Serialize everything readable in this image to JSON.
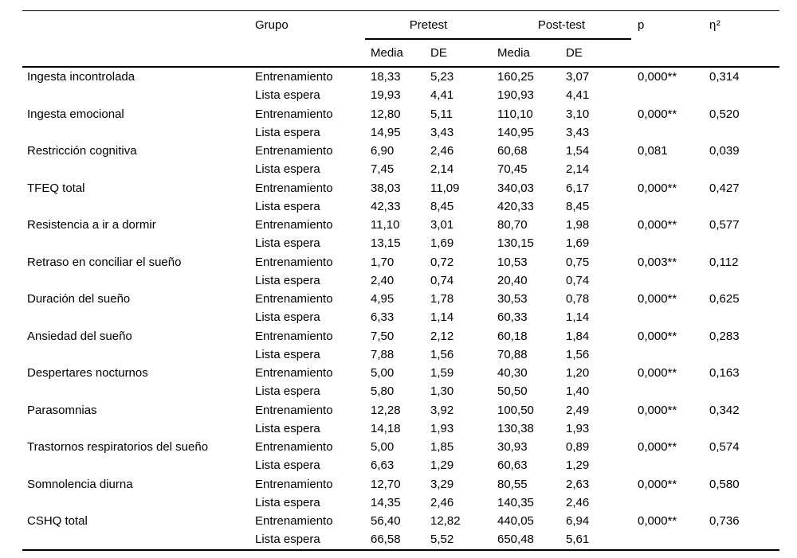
{
  "table": {
    "headers": {
      "grupo": "Grupo",
      "pretest": "Pretest",
      "posttest": "Post-test",
      "media": "Media",
      "de": "DE",
      "p": "p",
      "eta_label": "η²"
    },
    "rows": [
      {
        "variable": "Ingesta incontrolada",
        "groups": [
          {
            "grupo": "Entrenamiento",
            "pre_media": "18,33",
            "pre_de": "5,23",
            "post_media": "160,25",
            "post_de": "3,07",
            "p": "0,000**",
            "eta": "0,314"
          },
          {
            "grupo": "Lista espera",
            "pre_media": "19,93",
            "pre_de": "4,41",
            "post_media": "190,93",
            "post_de": "4,41",
            "p": "",
            "eta": ""
          }
        ]
      },
      {
        "variable": "Ingesta emocional",
        "groups": [
          {
            "grupo": "Entrenamiento",
            "pre_media": "12,80",
            "pre_de": "5,11",
            "post_media": "110,10",
            "post_de": "3,10",
            "p": "0,000**",
            "eta": "0,520"
          },
          {
            "grupo": "Lista espera",
            "pre_media": "14,95",
            "pre_de": "3,43",
            "post_media": "140,95",
            "post_de": "3,43",
            "p": "",
            "eta": ""
          }
        ]
      },
      {
        "variable": "Restricción cognitiva",
        "groups": [
          {
            "grupo": "Entrenamiento",
            "pre_media": "6,90",
            "pre_de": "2,46",
            "post_media": "60,68",
            "post_de": "1,54",
            "p": "0,081",
            "eta": "0,039"
          },
          {
            "grupo": "Lista espera",
            "pre_media": "7,45",
            "pre_de": "2,14",
            "post_media": "70,45",
            "post_de": "2,14",
            "p": "",
            "eta": ""
          }
        ]
      },
      {
        "variable": "TFEQ total",
        "groups": [
          {
            "grupo": "Entrenamiento",
            "pre_media": "38,03",
            "pre_de": "11,09",
            "post_media": "340,03",
            "post_de": "6,17",
            "p": "0,000**",
            "eta": "0,427"
          },
          {
            "grupo": "Lista espera",
            "pre_media": "42,33",
            "pre_de": "8,45",
            "post_media": "420,33",
            "post_de": "8,45",
            "p": "",
            "eta": ""
          }
        ]
      },
      {
        "variable": "Resistencia a ir a dormir",
        "groups": [
          {
            "grupo": "Entrenamiento",
            "pre_media": "11,10",
            "pre_de": "3,01",
            "post_media": "80,70",
            "post_de": "1,98",
            "p": "0,000**",
            "eta": "0,577"
          },
          {
            "grupo": "Lista espera",
            "pre_media": "13,15",
            "pre_de": "1,69",
            "post_media": "130,15",
            "post_de": "1,69",
            "p": "",
            "eta": ""
          }
        ]
      },
      {
        "variable": "Retraso en conciliar el sueño",
        "groups": [
          {
            "grupo": "Entrenamiento",
            "pre_media": "1,70",
            "pre_de": "0,72",
            "post_media": "10,53",
            "post_de": "0,75",
            "p": "0,003**",
            "eta": "0,112"
          },
          {
            "grupo": "Lista espera",
            "pre_media": "2,40",
            "pre_de": "0,74",
            "post_media": "20,40",
            "post_de": "0,74",
            "p": "",
            "eta": ""
          }
        ]
      },
      {
        "variable": "Duración del sueño",
        "groups": [
          {
            "grupo": "Entrenamiento",
            "pre_media": "4,95",
            "pre_de": "1,78",
            "post_media": "30,53",
            "post_de": "0,78",
            "p": "0,000**",
            "eta": "0,625"
          },
          {
            "grupo": "Lista espera",
            "pre_media": "6,33",
            "pre_de": "1,14",
            "post_media": "60,33",
            "post_de": "1,14",
            "p": "",
            "eta": ""
          }
        ]
      },
      {
        "variable": "Ansiedad del sueño",
        "groups": [
          {
            "grupo": "Entrenamiento",
            "pre_media": "7,50",
            "pre_de": "2,12",
            "post_media": "60,18",
            "post_de": "1,84",
            "p": "0,000**",
            "eta": "0,283"
          },
          {
            "grupo": "Lista espera",
            "pre_media": "7,88",
            "pre_de": "1,56",
            "post_media": "70,88",
            "post_de": "1,56",
            "p": "",
            "eta": ""
          }
        ]
      },
      {
        "variable": "Despertares nocturnos",
        "groups": [
          {
            "grupo": "Entrenamiento",
            "pre_media": "5,00",
            "pre_de": "1,59",
            "post_media": "40,30",
            "post_de": "1,20",
            "p": "0,000**",
            "eta": "0,163"
          },
          {
            "grupo": "Lista espera",
            "pre_media": "5,80",
            "pre_de": "1,30",
            "post_media": "50,50",
            "post_de": "1,40",
            "p": "",
            "eta": ""
          }
        ]
      },
      {
        "variable": "Parasomnias",
        "groups": [
          {
            "grupo": "Entrenamiento",
            "pre_media": "12,28",
            "pre_de": "3,92",
            "post_media": "100,50",
            "post_de": "2,49",
            "p": "0,000**",
            "eta": "0,342"
          },
          {
            "grupo": "Lista espera",
            "pre_media": "14,18",
            "pre_de": "1,93",
            "post_media": "130,38",
            "post_de": "1,93",
            "p": "",
            "eta": ""
          }
        ]
      },
      {
        "variable": "Trastornos respiratorios del sueño",
        "groups": [
          {
            "grupo": "Entrenamiento",
            "pre_media": "5,00",
            "pre_de": "1,85",
            "post_media": "30,93",
            "post_de": "0,89",
            "p": "0,000**",
            "eta": "0,574"
          },
          {
            "grupo": "Lista espera",
            "pre_media": "6,63",
            "pre_de": "1,29",
            "post_media": "60,63",
            "post_de": "1,29",
            "p": "",
            "eta": ""
          }
        ]
      },
      {
        "variable": "Somnolencia diurna",
        "groups": [
          {
            "grupo": "Entrenamiento",
            "pre_media": "12,70",
            "pre_de": "3,29",
            "post_media": "80,55",
            "post_de": "2,63",
            "p": "0,000**",
            "eta": "0,580"
          },
          {
            "grupo": "Lista espera",
            "pre_media": "14,35",
            "pre_de": "2,46",
            "post_media": "140,35",
            "post_de": "2,46",
            "p": "",
            "eta": ""
          }
        ]
      },
      {
        "variable": "CSHQ total",
        "groups": [
          {
            "grupo": "Entrenamiento",
            "pre_media": "56,40",
            "pre_de": "12,82",
            "post_media": "440,05",
            "post_de": "6,94",
            "p": "0,000**",
            "eta": "0,736"
          },
          {
            "grupo": "Lista espera",
            "pre_media": "66,58",
            "pre_de": "5,52",
            "post_media": "650,48",
            "post_de": "5,61",
            "p": "",
            "eta": ""
          }
        ]
      }
    ]
  }
}
